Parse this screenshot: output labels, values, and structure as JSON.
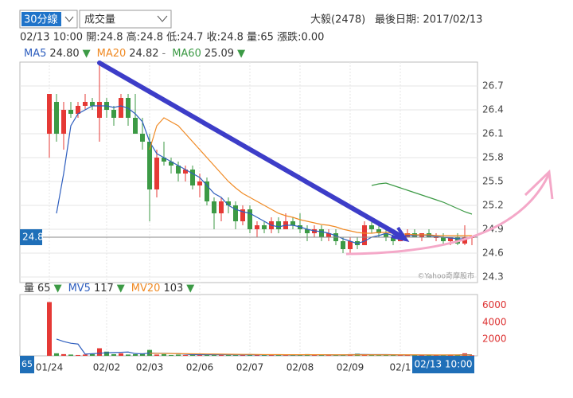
{
  "controls": {
    "period": "30分線",
    "indicator": "成交量"
  },
  "header": {
    "stock": "大毅(2478)",
    "last_date": "最後日期: 2017/02/13",
    "info": "02/13 10:00 開:24.8 高:24.8 低:24.7 收:24.8 量:65 漲跌:0.00"
  },
  "chart_data": [
    {
      "type": "candlestick",
      "categories": [
        "01/24",
        null,
        null,
        null,
        null,
        null,
        null,
        null,
        "02/02",
        null,
        null,
        null,
        null,
        null,
        "02/03",
        null,
        null,
        null,
        null,
        null,
        null,
        "02/06",
        null,
        null,
        null,
        null,
        null,
        null,
        "02/07",
        null,
        null,
        null,
        null,
        null,
        null,
        "02/08",
        null,
        null,
        null,
        null,
        null,
        null,
        "02/09",
        null,
        null,
        null,
        null,
        null,
        null,
        "02/1",
        null,
        null,
        null,
        null,
        null,
        null,
        null,
        null,
        null,
        null
      ],
      "open": [
        26.1,
        26.5,
        26.1,
        26.4,
        26.35,
        26.45,
        26.5,
        26.3,
        26.5,
        26.4,
        26.3,
        26.55,
        26.3,
        26.1,
        26.0,
        25.4,
        25.8,
        25.75,
        25.7,
        25.6,
        25.65,
        25.45,
        25.5,
        25.25,
        25.1,
        25.25,
        25.2,
        25.0,
        25.15,
        24.9,
        24.95,
        24.9,
        25.0,
        24.9,
        25.0,
        24.95,
        24.9,
        24.85,
        24.9,
        24.8,
        24.85,
        24.75,
        24.65,
        24.75,
        24.7,
        24.95,
        24.9,
        24.85,
        24.8,
        24.75,
        24.8,
        24.85,
        24.8,
        24.85,
        24.8,
        24.8,
        24.75,
        24.8,
        24.72,
        24.8
      ],
      "high": [
        26.6,
        26.6,
        26.5,
        26.5,
        26.5,
        26.6,
        26.55,
        27.0,
        26.55,
        26.45,
        26.6,
        26.6,
        26.6,
        26.3,
        26.1,
        25.9,
        26.0,
        25.8,
        25.75,
        25.7,
        25.7,
        25.6,
        25.55,
        25.3,
        25.3,
        25.3,
        25.25,
        25.2,
        25.2,
        25.0,
        25.0,
        25.05,
        25.05,
        25.1,
        25.05,
        25.1,
        24.95,
        24.95,
        24.95,
        24.9,
        24.9,
        24.8,
        24.8,
        24.8,
        25.0,
        25.05,
        24.95,
        24.9,
        24.85,
        24.9,
        24.9,
        24.9,
        24.85,
        24.9,
        24.85,
        24.85,
        24.8,
        24.85,
        24.95,
        24.8
      ],
      "low": [
        25.8,
        26.0,
        25.9,
        26.3,
        26.3,
        26.4,
        26.4,
        26.0,
        26.3,
        26.2,
        26.3,
        26.2,
        26.1,
        25.9,
        25.0,
        25.3,
        25.7,
        25.6,
        25.5,
        25.5,
        25.4,
        25.3,
        25.2,
        24.9,
        25.0,
        25.1,
        24.9,
        24.95,
        24.85,
        24.8,
        24.85,
        24.85,
        24.85,
        24.9,
        24.9,
        24.85,
        24.75,
        24.8,
        24.75,
        24.75,
        24.7,
        24.6,
        24.6,
        24.65,
        24.7,
        24.85,
        24.8,
        24.75,
        24.7,
        24.75,
        24.8,
        24.8,
        24.75,
        24.8,
        24.75,
        24.7,
        24.7,
        24.7,
        24.7,
        24.7
      ],
      "close": [
        26.6,
        26.1,
        26.4,
        26.35,
        26.45,
        26.5,
        26.45,
        26.5,
        26.4,
        26.3,
        26.55,
        26.3,
        26.1,
        26.0,
        25.4,
        25.8,
        25.75,
        25.7,
        25.6,
        25.65,
        25.45,
        25.5,
        25.25,
        25.1,
        25.25,
        25.2,
        25.0,
        25.15,
        24.9,
        24.95,
        24.9,
        25.0,
        24.9,
        25.0,
        24.95,
        24.9,
        24.85,
        24.9,
        24.8,
        24.85,
        24.75,
        24.65,
        24.75,
        24.7,
        24.95,
        24.9,
        24.85,
        24.8,
        24.75,
        24.85,
        24.85,
        24.8,
        24.85,
        24.8,
        24.8,
        24.75,
        24.8,
        24.72,
        24.8,
        24.8
      ],
      "up_color": "#e53935",
      "down_color": "#3c9a45",
      "series": [
        {
          "name": "MA5",
          "color": "#2f5fbf",
          "legend_value": "24.80",
          "trend": "▼",
          "values": [
            null,
            25.1,
            25.6,
            26.2,
            26.35,
            26.4,
            26.45,
            26.45,
            26.45,
            26.43,
            26.45,
            26.42,
            26.35,
            26.25,
            26.0,
            25.85,
            25.8,
            25.75,
            25.7,
            25.65,
            25.6,
            25.55,
            25.45,
            25.35,
            25.3,
            25.2,
            25.15,
            25.12,
            25.1,
            25.05,
            25.0,
            24.95,
            24.93,
            24.95,
            24.95,
            24.93,
            24.9,
            24.88,
            24.87,
            24.85,
            24.82,
            24.78,
            24.75,
            24.72,
            24.75,
            24.8,
            24.82,
            24.85,
            24.82,
            24.8,
            24.82,
            24.82,
            24.83,
            24.82,
            24.81,
            24.8,
            24.79,
            24.78,
            24.78,
            24.8
          ]
        },
        {
          "name": "MA20",
          "color": "#f08a24",
          "legend_value": "24.82",
          "trend": "-",
          "values": [
            null,
            null,
            null,
            null,
            null,
            null,
            null,
            null,
            null,
            null,
            null,
            null,
            null,
            null,
            25.9,
            26.2,
            26.3,
            26.25,
            26.2,
            26.1,
            26.0,
            25.9,
            25.8,
            25.7,
            25.6,
            25.5,
            25.42,
            25.35,
            25.3,
            25.25,
            25.2,
            25.15,
            25.1,
            25.07,
            25.05,
            25.02,
            25.0,
            24.98,
            24.96,
            24.95,
            24.93,
            24.9,
            24.88,
            24.86,
            24.85,
            24.85,
            24.86,
            24.86,
            24.85,
            24.84,
            24.84,
            24.83,
            24.83,
            24.83,
            24.82,
            24.82,
            24.82,
            24.82,
            24.82,
            24.82
          ]
        },
        {
          "name": "MA60",
          "color": "#3c9a45",
          "legend_value": "25.09",
          "trend": "▼",
          "values": [
            null,
            null,
            null,
            null,
            null,
            null,
            null,
            null,
            null,
            null,
            null,
            null,
            null,
            null,
            null,
            null,
            null,
            null,
            null,
            null,
            null,
            null,
            null,
            null,
            null,
            null,
            null,
            null,
            null,
            null,
            null,
            null,
            null,
            null,
            null,
            null,
            null,
            null,
            null,
            null,
            null,
            null,
            null,
            null,
            null,
            25.45,
            25.47,
            25.48,
            25.45,
            25.42,
            25.39,
            25.36,
            25.33,
            25.3,
            25.27,
            25.24,
            25.2,
            25.16,
            25.12,
            25.09
          ]
        }
      ],
      "ylim": [
        24.23,
        27.0
      ],
      "yticks": [
        24.3,
        24.6,
        24.9,
        25.2,
        25.5,
        25.8,
        26.1,
        26.4,
        26.7
      ],
      "grid": true,
      "source": "©Yahoo奇摩股市"
    },
    {
      "type": "bar",
      "series": [
        {
          "name": "量",
          "legend_value": "65",
          "trend": "▼",
          "values": [
            6400,
            300,
            200,
            150,
            100,
            150,
            200,
            900,
            500,
            200,
            300,
            150,
            200,
            300,
            700,
            150,
            200,
            100,
            150,
            100,
            150,
            100,
            200,
            150,
            100,
            120,
            100,
            150,
            200,
            100,
            100,
            150,
            100,
            80,
            100,
            150,
            200,
            120,
            100,
            80,
            100,
            150,
            200,
            250,
            150,
            100,
            80,
            100,
            120,
            100,
            100,
            80,
            90,
            100,
            80,
            100,
            120,
            80,
            300,
            65
          ]
        },
        {
          "name": "MV5",
          "color": "#2f5fbf",
          "legend_value": "117",
          "trend": "▼",
          "values": [
            null,
            2000,
            1700,
            1500,
            1400,
            200,
            250,
            300,
            370,
            390,
            420,
            450,
            270,
            230,
            330,
            300,
            300,
            290,
            260,
            200,
            140,
            140,
            140,
            140,
            140,
            140,
            130,
            130,
            130,
            130,
            130,
            130,
            130,
            120,
            110,
            120,
            130,
            130,
            130,
            130,
            110,
            110,
            130,
            160,
            160,
            150,
            140,
            140,
            130,
            110,
            100,
            100,
            100,
            100,
            90,
            90,
            100,
            100,
            140,
            117
          ]
        },
        {
          "name": "MV20",
          "color": "#f08a24",
          "legend_value": "103",
          "trend": "▼",
          "values": [
            null,
            null,
            null,
            null,
            null,
            null,
            null,
            null,
            null,
            null,
            null,
            null,
            null,
            null,
            300,
            290,
            280,
            270,
            260,
            250,
            240,
            230,
            220,
            210,
            200,
            190,
            180,
            170,
            170,
            160,
            150,
            140,
            140,
            130,
            130,
            130,
            130,
            130,
            130,
            120,
            120,
            120,
            120,
            120,
            120,
            120,
            120,
            120,
            120,
            115,
            115,
            115,
            112,
            110,
            110,
            108,
            106,
            105,
            105,
            103
          ]
        }
      ],
      "ylim": [
        0,
        7300
      ],
      "yticks": [
        2000,
        4000,
        6000
      ],
      "x_cursor": "02/13 10:00"
    }
  ]
}
